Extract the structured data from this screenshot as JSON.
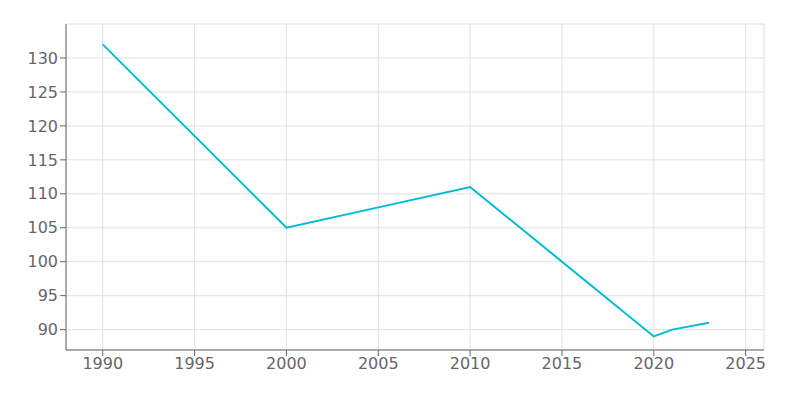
{
  "chart_data": {
    "type": "line",
    "x": [
      1990,
      2000,
      2005,
      2010,
      2020,
      2021,
      2023
    ],
    "values": [
      132,
      105,
      108,
      111,
      89,
      90,
      91
    ],
    "color": "#00BCD4",
    "xlim": [
      1988,
      2026
    ],
    "ylim": [
      87,
      135
    ],
    "xticks": [
      1990,
      1995,
      2000,
      2005,
      2010,
      2015,
      2020,
      2025
    ],
    "yticks": [
      90,
      95,
      100,
      105,
      110,
      115,
      120,
      125,
      130
    ],
    "grid": true
  }
}
